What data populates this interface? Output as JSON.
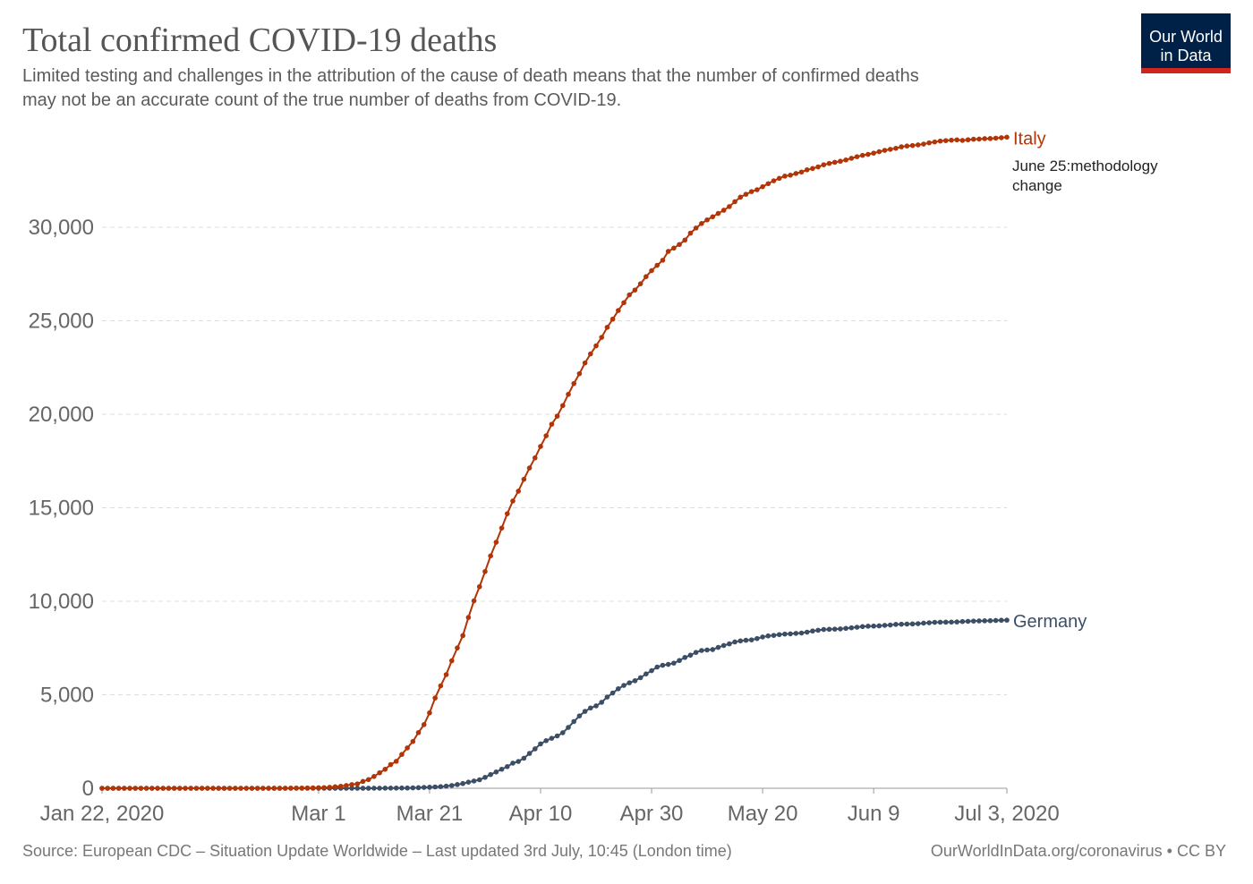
{
  "chart_data": {
    "type": "line",
    "title": "Total confirmed COVID-19 deaths",
    "subtitle": [
      "Limited testing and challenges in the attribution of the cause of death means that the number of confirmed deaths",
      "may not be an accurate count of the true number of deaths from COVID-19."
    ],
    "logo": [
      "Our World",
      "in Data"
    ],
    "source": "Source: European CDC – Situation Update Worldwide – Last updated 3rd July, 10:45 (London time)",
    "credit": "OurWorldInData.org/coronavirus • CC BY",
    "annotation": "June 25:methodology change",
    "grid": true,
    "xlim": [
      "2020-01-22",
      "2020-07-03"
    ],
    "xticks": [
      {
        "value": "2020-01-22",
        "label": "Jan 22, 2020"
      },
      {
        "value": "2020-03-01",
        "label": "Mar 1"
      },
      {
        "value": "2020-03-21",
        "label": "Mar 21"
      },
      {
        "value": "2020-04-10",
        "label": "Apr 10"
      },
      {
        "value": "2020-04-30",
        "label": "Apr 30"
      },
      {
        "value": "2020-05-20",
        "label": "May 20"
      },
      {
        "value": "2020-06-09",
        "label": "Jun 9"
      },
      {
        "value": "2020-07-03",
        "label": "Jul 3, 2020"
      }
    ],
    "ylim": [
      0,
      35000
    ],
    "yticks": [
      0,
      {
        "value": 5000,
        "label": "5,000"
      },
      {
        "value": 10000,
        "label": "10,000"
      },
      {
        "value": 15000,
        "label": "15,000"
      },
      {
        "value": 20000,
        "label": "20,000"
      },
      {
        "value": 25000,
        "label": "25,000"
      },
      {
        "value": 30000,
        "label": "30,000"
      }
    ],
    "x": [
      "2020-01-22",
      "2020-01-23",
      "2020-01-24",
      "2020-01-25",
      "2020-01-26",
      "2020-01-27",
      "2020-01-28",
      "2020-01-29",
      "2020-01-30",
      "2020-01-31",
      "2020-02-01",
      "2020-02-02",
      "2020-02-03",
      "2020-02-04",
      "2020-02-05",
      "2020-02-06",
      "2020-02-07",
      "2020-02-08",
      "2020-02-09",
      "2020-02-10",
      "2020-02-11",
      "2020-02-12",
      "2020-02-13",
      "2020-02-14",
      "2020-02-15",
      "2020-02-16",
      "2020-02-17",
      "2020-02-18",
      "2020-02-19",
      "2020-02-20",
      "2020-02-21",
      "2020-02-22",
      "2020-02-23",
      "2020-02-24",
      "2020-02-25",
      "2020-02-26",
      "2020-02-27",
      "2020-02-28",
      "2020-02-29",
      "2020-03-01",
      "2020-03-02",
      "2020-03-03",
      "2020-03-04",
      "2020-03-05",
      "2020-03-06",
      "2020-03-07",
      "2020-03-08",
      "2020-03-09",
      "2020-03-10",
      "2020-03-11",
      "2020-03-12",
      "2020-03-13",
      "2020-03-14",
      "2020-03-15",
      "2020-03-16",
      "2020-03-17",
      "2020-03-18",
      "2020-03-19",
      "2020-03-20",
      "2020-03-21",
      "2020-03-22",
      "2020-03-23",
      "2020-03-24",
      "2020-03-25",
      "2020-03-26",
      "2020-03-27",
      "2020-03-28",
      "2020-03-29",
      "2020-03-30",
      "2020-03-31",
      "2020-04-01",
      "2020-04-02",
      "2020-04-03",
      "2020-04-04",
      "2020-04-05",
      "2020-04-06",
      "2020-04-07",
      "2020-04-08",
      "2020-04-09",
      "2020-04-10",
      "2020-04-11",
      "2020-04-12",
      "2020-04-13",
      "2020-04-14",
      "2020-04-15",
      "2020-04-16",
      "2020-04-17",
      "2020-04-18",
      "2020-04-19",
      "2020-04-20",
      "2020-04-21",
      "2020-04-22",
      "2020-04-23",
      "2020-04-24",
      "2020-04-25",
      "2020-04-26",
      "2020-04-27",
      "2020-04-28",
      "2020-04-29",
      "2020-04-30",
      "2020-05-01",
      "2020-05-02",
      "2020-05-03",
      "2020-05-04",
      "2020-05-05",
      "2020-05-06",
      "2020-05-07",
      "2020-05-08",
      "2020-05-09",
      "2020-05-10",
      "2020-05-11",
      "2020-05-12",
      "2020-05-13",
      "2020-05-14",
      "2020-05-15",
      "2020-05-16",
      "2020-05-17",
      "2020-05-18",
      "2020-05-19",
      "2020-05-20",
      "2020-05-21",
      "2020-05-22",
      "2020-05-23",
      "2020-05-24",
      "2020-05-25",
      "2020-05-26",
      "2020-05-27",
      "2020-05-28",
      "2020-05-29",
      "2020-05-30",
      "2020-05-31",
      "2020-06-01",
      "2020-06-02",
      "2020-06-03",
      "2020-06-04",
      "2020-06-05",
      "2020-06-06",
      "2020-06-07",
      "2020-06-08",
      "2020-06-09",
      "2020-06-10",
      "2020-06-11",
      "2020-06-12",
      "2020-06-13",
      "2020-06-14",
      "2020-06-15",
      "2020-06-16",
      "2020-06-17",
      "2020-06-18",
      "2020-06-19",
      "2020-06-20",
      "2020-06-21",
      "2020-06-22",
      "2020-06-23",
      "2020-06-24",
      "2020-06-25",
      "2020-06-26",
      "2020-06-27",
      "2020-06-28",
      "2020-06-29",
      "2020-06-30",
      "2020-07-01",
      "2020-07-02",
      "2020-07-03"
    ],
    "series": [
      {
        "name": "Italy",
        "color": "#b13507",
        "values": [
          0,
          0,
          0,
          0,
          0,
          0,
          0,
          0,
          0,
          0,
          0,
          0,
          0,
          0,
          0,
          0,
          0,
          0,
          0,
          0,
          0,
          0,
          0,
          0,
          0,
          0,
          0,
          0,
          0,
          0,
          0,
          1,
          2,
          3,
          7,
          10,
          12,
          17,
          21,
          29,
          34,
          52,
          79,
          107,
          148,
          197,
          233,
          366,
          463,
          631,
          827,
          1016,
          1266,
          1441,
          1809,
          2158,
          2503,
          2978,
          3405,
          4032,
          4825,
          5476,
          6077,
          6820,
          7503,
          8165,
          9134,
          10023,
          10779,
          11591,
          12428,
          13155,
          13915,
          14681,
          15362,
          15887,
          16523,
          17127,
          17669,
          18279,
          18849,
          19468,
          19899,
          20465,
          21067,
          21645,
          22170,
          22745,
          23227,
          23660,
          24114,
          24648,
          25085,
          25549,
          25969,
          26384,
          26644,
          26977,
          27359,
          27682,
          27967,
          28236,
          28710,
          28884,
          29079,
          29315,
          29684,
          29958,
          30201,
          30395,
          30560,
          30739,
          30911,
          31106,
          31368,
          31610,
          31763,
          31908,
          32007,
          32169,
          32330,
          32486,
          32616,
          32735,
          32785,
          32877,
          32955,
          33072,
          33142,
          33229,
          33340,
          33415,
          33475,
          33530,
          33601,
          33689,
          33774,
          33846,
          33899,
          33964,
          34043,
          34114,
          34167,
          34223,
          34301,
          34345,
          34371,
          34405,
          34448,
          34514,
          34561,
          34610,
          34634,
          34657,
          34675,
          34644,
          34678,
          34708,
          34716,
          34738,
          34744,
          34767,
          34788,
          34818
        ]
      },
      {
        "name": "Germany",
        "color": "#3c4e66",
        "values": [
          0,
          0,
          0,
          0,
          0,
          0,
          0,
          0,
          0,
          0,
          0,
          0,
          0,
          0,
          0,
          0,
          0,
          0,
          0,
          0,
          0,
          0,
          0,
          0,
          0,
          0,
          0,
          0,
          0,
          0,
          0,
          0,
          0,
          0,
          0,
          0,
          0,
          0,
          0,
          0,
          0,
          0,
          0,
          0,
          0,
          0,
          0,
          2,
          2,
          3,
          3,
          7,
          9,
          11,
          13,
          13,
          20,
          31,
          47,
          55,
          72,
          86,
          114,
          149,
          198,
          253,
          325,
          389,
          455,
          583,
          732,
          872,
          1017,
          1158,
          1342,
          1434,
          1607,
          1861,
          2107,
          2373,
          2544,
          2673,
          2799,
          2969,
          3254,
          3569,
          3868,
          4110,
          4294,
          4404,
          4598,
          4879,
          5094,
          5321,
          5500,
          5640,
          5750,
          5913,
          6115,
          6288,
          6481,
          6575,
          6623,
          6692,
          6831,
          6996,
          7119,
          7266,
          7369,
          7395,
          7417,
          7533,
          7634,
          7723,
          7824,
          7881,
          7914,
          7935,
          8007,
          8090,
          8147,
          8174,
          8216,
          8247,
          8257,
          8283,
          8302,
          8349,
          8411,
          8450,
          8489,
          8500,
          8511,
          8522,
          8551,
          8581,
          8613,
          8646,
          8668,
          8674,
          8685,
          8711,
          8729,
          8763,
          8772,
          8781,
          8787,
          8800,
          8830,
          8851,
          8872,
          8882,
          8883,
          8887,
          8895,
          8914,
          8927,
          8940,
          8948,
          8954,
          8961,
          8973,
          8985,
          8990
        ]
      }
    ]
  }
}
